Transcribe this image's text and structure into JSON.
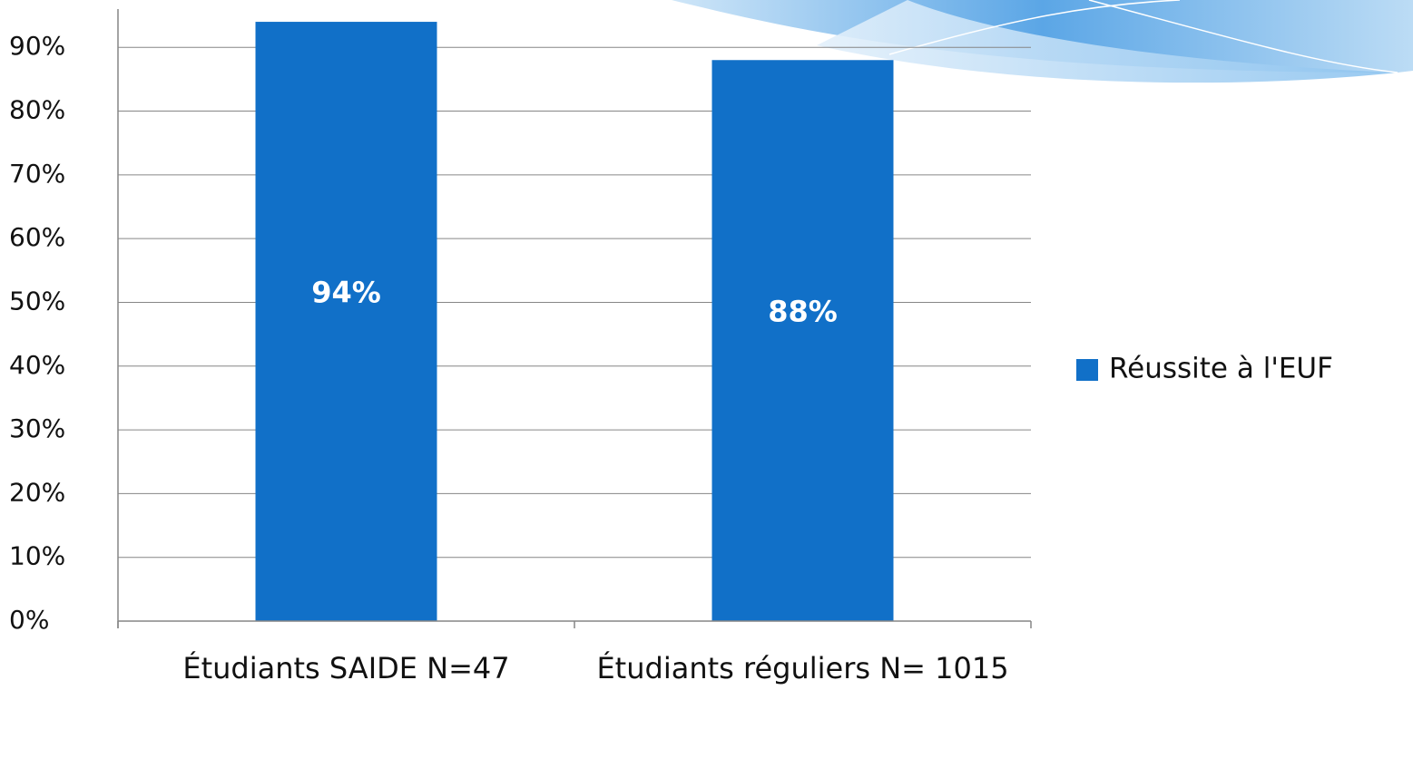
{
  "chart_data": {
    "type": "bar",
    "categories": [
      "Étudiants SAIDE N=47",
      "Étudiants réguliers N= 1015"
    ],
    "series": [
      {
        "name": "Réussite à l'EUF",
        "color": "#1170c8",
        "values": [
          94,
          88
        ],
        "value_labels": [
          "94%",
          "88%"
        ]
      }
    ],
    "ylim": [
      0,
      96
    ],
    "yticks": [
      {
        "value": 0,
        "label": "0%"
      },
      {
        "value": 10,
        "label": "10%"
      },
      {
        "value": 20,
        "label": "20%"
      },
      {
        "value": 30,
        "label": "30%"
      },
      {
        "value": 40,
        "label": "40%"
      },
      {
        "value": 50,
        "label": "50%"
      },
      {
        "value": 60,
        "label": "60%"
      },
      {
        "value": 70,
        "label": "70%"
      },
      {
        "value": 80,
        "label": "80%"
      },
      {
        "value": 90,
        "label": "90%"
      }
    ],
    "grid": true,
    "legend": "right"
  }
}
